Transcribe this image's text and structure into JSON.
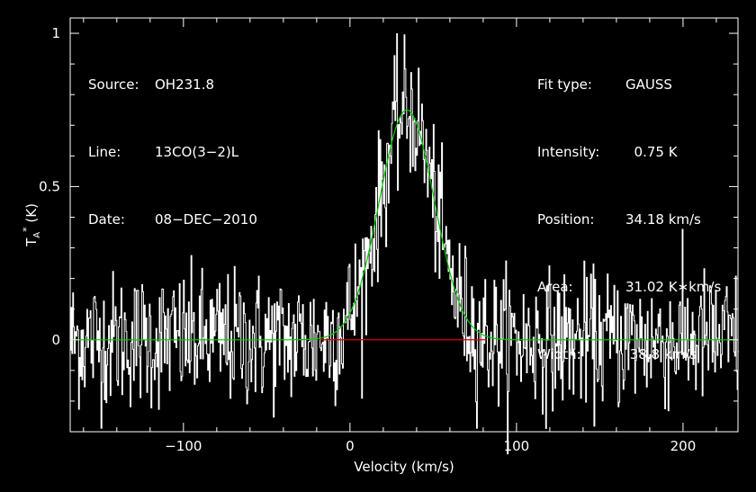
{
  "header_left": [
    {
      "key": "Source:",
      "value": "OH231.8"
    },
    {
      "key": "Line:",
      "value": "13CO(3−2)L"
    },
    {
      "key": "Date:",
      "value": "08−DEC−2010"
    }
  ],
  "header_right": [
    {
      "key": "Fit type:",
      "value": "GAUSS"
    },
    {
      "key": "Intensity:",
      "value": "  0.75 K"
    },
    {
      "key": "Position:",
      "value": "34.18 km/s"
    },
    {
      "key": "Area:",
      "value": "31.02 K∗km/s"
    },
    {
      "key": "Width:",
      "value": " 38.8 km/s"
    }
  ],
  "chart_data": {
    "type": "line",
    "xlabel": "Velocity (km/s)",
    "ylabel": "T_A^* (K)",
    "xlim": [
      -168,
      233
    ],
    "ylim": [
      -0.3,
      1.05
    ],
    "x_ticks": [
      -100,
      0,
      100,
      200
    ],
    "x_tick_labels": [
      "−100",
      "0",
      "100",
      "200"
    ],
    "y_ticks": [
      0,
      0.5,
      1
    ],
    "y_tick_labels": [
      "0",
      "0.5",
      "1"
    ],
    "grid": false,
    "colors": {
      "spectrum": "#ffffff",
      "fit": "#00cc00",
      "baseline": "#dd0000",
      "frame": "#ffffff",
      "background": "#000000"
    },
    "series": [
      {
        "kind": "spectrum",
        "noise_rms_K": 0.11,
        "x_step": 0.5
      },
      {
        "kind": "gaussian_fit",
        "amplitude": 0.75,
        "center": 34.18,
        "fwhm": 38.8
      },
      {
        "kind": "baseline",
        "y": 0,
        "x_range": [
          -18,
          82
        ]
      }
    ]
  }
}
